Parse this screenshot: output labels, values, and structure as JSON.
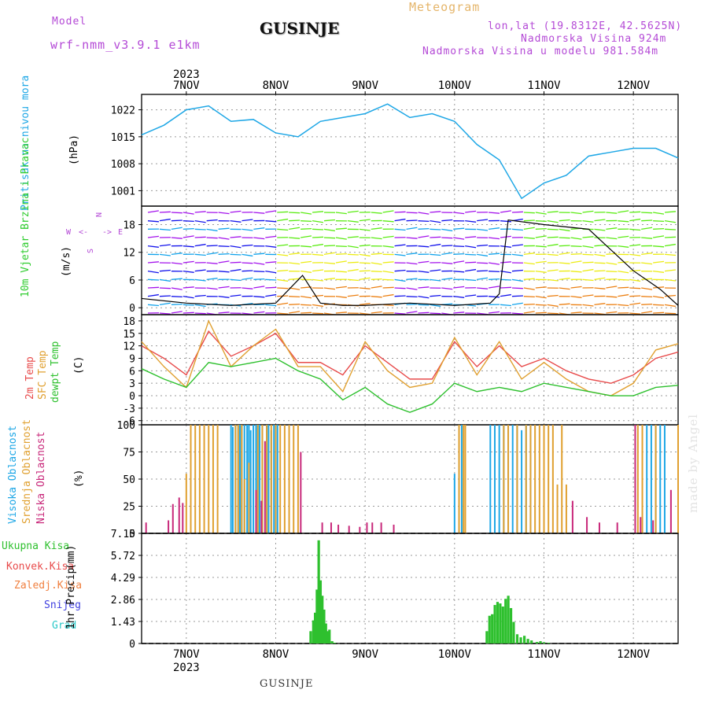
{
  "header": {
    "model_label": "Model",
    "model_name": "wrf-nmm_v3.9.1 e1km",
    "station": "GUSINJE",
    "meteogram_label": "Meteogram",
    "lonlat": "lon,lat (19.8312E, 42.5625N)",
    "altitude": "Nadmorska Visina 924m",
    "model_altitude": "Nadmorska Visina u modelu 981.584m"
  },
  "footer": {
    "station": "GUSINJE",
    "watermark": "made by Angel"
  },
  "colors": {
    "pressure": "#1ea7e6",
    "wind_labels": "#2ecc2e",
    "temp2m": "#e84b4b",
    "sfc": "#e0a030",
    "dewpt": "#2ec02e",
    "high_cloud": "#1ea7e6",
    "mid_cloud": "#e0a030",
    "low_cloud": "#c8287a",
    "precip": "#2ec02e"
  },
  "chart_data": [
    {
      "type": "line",
      "panel": "pressure",
      "ylabel": "Pritisak na nivou mora",
      "unit": "(hPa)",
      "year": "2023",
      "categories": [
        "7NOV",
        "8NOV",
        "9NOV",
        "10NOV",
        "11NOV",
        "12NOV"
      ],
      "x_day_ticks": [
        0.5,
        1.5,
        2.5,
        3.5,
        4.5,
        5.5
      ],
      "xlim": [
        0,
        6
      ],
      "ylim": [
        997,
        1026
      ],
      "yticks": [
        1001,
        1008,
        1015,
        1022
      ],
      "series": [
        {
          "x": [
            0.0,
            0.25,
            0.5,
            0.75,
            1.0,
            1.25,
            1.5,
            1.75,
            2.0,
            2.25,
            2.5,
            2.75,
            3.0,
            3.25,
            3.5,
            3.75,
            4.0,
            4.25,
            4.5,
            4.75,
            5.0,
            5.25,
            5.5,
            5.75,
            6.0
          ],
          "values": [
            1015.5,
            1018,
            1022,
            1023,
            1019,
            1019.5,
            1016,
            1015,
            1019,
            1020,
            1021,
            1023.5,
            1020,
            1021,
            1019,
            1013,
            1009,
            999,
            1003,
            1005,
            1010,
            1011,
            1012,
            1012,
            1009.5
          ]
        }
      ]
    },
    {
      "type": "line",
      "panel": "wind",
      "ylabel": "10m Vjetar Brzina i Pravac",
      "unit": "(m/s)",
      "compass": [
        "N",
        "<-",
        "W",
        "->",
        "E",
        "S"
      ],
      "ylim": [
        -1.5,
        22
      ],
      "yticks": [
        0,
        6,
        12,
        18
      ],
      "series": [
        {
          "name": "speed",
          "x": [
            0.0,
            0.5,
            1.0,
            1.5,
            1.8,
            2.0,
            2.25,
            2.5,
            3.0,
            3.5,
            3.9,
            4.0,
            4.1,
            4.5,
            5.0,
            5.5,
            5.8,
            6.0
          ],
          "values": [
            2,
            1,
            0.5,
            1,
            7,
            1,
            0.5,
            0.5,
            1,
            0.5,
            1,
            3,
            19,
            18,
            17,
            8,
            4,
            0.5
          ]
        }
      ]
    },
    {
      "type": "line",
      "panel": "temperature",
      "ylabel": [
        "2m Temp",
        "SFC Temp",
        "dewpt Temp"
      ],
      "unit": "(C)",
      "ylim": [
        -7,
        19.5
      ],
      "yticks": [
        -6,
        -3,
        0,
        3,
        6,
        9,
        12,
        15,
        18
      ],
      "x": [
        0.0,
        0.25,
        0.5,
        0.75,
        1.0,
        1.25,
        1.5,
        1.75,
        2.0,
        2.25,
        2.5,
        2.75,
        3.0,
        3.25,
        3.5,
        3.75,
        4.0,
        4.25,
        4.5,
        4.75,
        5.0,
        5.25,
        5.5,
        5.75,
        6.0
      ],
      "series": [
        {
          "name": "2m Temp",
          "values": [
            12,
            9,
            5,
            15.5,
            9.5,
            12,
            15,
            8,
            8,
            5,
            12,
            8,
            4,
            4,
            13,
            7,
            12,
            7,
            9,
            6,
            4,
            3,
            5,
            9,
            10.5
          ]
        },
        {
          "name": "SFC Temp",
          "values": [
            13,
            7,
            2,
            18,
            7,
            12,
            16,
            7,
            7,
            1,
            13,
            6,
            2,
            3,
            14,
            5,
            13,
            4,
            8,
            4,
            1,
            0,
            3,
            11,
            12.5
          ]
        },
        {
          "name": "dewpt Temp",
          "values": [
            6.5,
            4,
            2,
            8,
            7,
            8,
            9,
            6,
            4,
            -1,
            2,
            -2,
            -4,
            -2,
            3,
            1,
            2,
            1,
            3,
            2,
            1,
            0,
            0,
            2,
            2.5
          ]
        }
      ]
    },
    {
      "type": "bar",
      "panel": "cloud",
      "ylabel": [
        "Visoka Oblacnost",
        "Srednja Oblacnost",
        "Niska Oblacnost"
      ],
      "unit": "(%)",
      "ylim": [
        0,
        100
      ],
      "yticks": [
        0,
        25,
        50,
        75,
        100
      ],
      "series": [
        {
          "name": "Visoka Oblacnost",
          "x": [
            1.0,
            1.02,
            1.05,
            1.08,
            1.1,
            1.12,
            1.15,
            1.18,
            1.2,
            1.22,
            1.25,
            1.28,
            1.3,
            1.32,
            1.35,
            1.4,
            1.42,
            1.45,
            1.48,
            1.5,
            1.52,
            3.5,
            3.55,
            3.58,
            3.9,
            3.95,
            4.0,
            4.05,
            4.1,
            4.15,
            4.2,
            4.25,
            4.3,
            4.35,
            5.65,
            5.7,
            5.75,
            5.8,
            5.85
          ],
          "values": [
            100,
            98,
            100,
            100,
            100,
            100,
            100,
            100,
            100,
            95,
            100,
            100,
            100,
            100,
            100,
            100,
            100,
            95,
            100,
            100,
            100,
            55,
            100,
            100,
            100,
            100,
            100,
            100,
            100,
            100,
            100,
            95,
            100,
            100,
            100,
            100,
            100,
            100,
            100
          ]
        },
        {
          "name": "Srednja Oblacnost",
          "x": [
            0.5,
            0.55,
            0.6,
            0.65,
            0.7,
            0.75,
            0.8,
            0.85,
            1.05,
            1.08,
            1.12,
            1.15,
            1.2,
            1.3,
            1.35,
            1.4,
            1.45,
            1.5,
            1.55,
            1.6,
            1.65,
            1.7,
            1.75,
            3.55,
            3.6,
            3.62,
            4.05,
            4.1,
            4.2,
            4.3,
            4.35,
            4.4,
            4.45,
            4.5,
            4.55,
            4.6,
            4.65,
            4.7,
            4.75,
            5.55,
            5.6,
            5.75,
            6.0
          ],
          "values": [
            55,
            100,
            100,
            100,
            100,
            100,
            100,
            100,
            100,
            100,
            100,
            50,
            65,
            100,
            100,
            100,
            100,
            100,
            100,
            100,
            100,
            100,
            100,
            100,
            100,
            100,
            100,
            100,
            100,
            100,
            100,
            100,
            100,
            100,
            100,
            100,
            45,
            100,
            45,
            100,
            100,
            100,
            100
          ]
        },
        {
          "name": "Niska Oblacnost",
          "x": [
            0.05,
            0.3,
            0.35,
            0.42,
            0.46,
            1.28,
            1.34,
            1.38,
            1.78,
            2.02,
            2.12,
            2.2,
            2.32,
            2.44,
            2.52,
            2.58,
            2.68,
            2.82,
            4.82,
            4.98,
            5.12,
            5.32,
            5.52,
            5.58,
            5.72,
            5.92
          ],
          "values": [
            10,
            12,
            27,
            33,
            28,
            40,
            30,
            85,
            75,
            10,
            10,
            8,
            7,
            6,
            10,
            10,
            10,
            8,
            30,
            15,
            10,
            10,
            100,
            15,
            12,
            40
          ]
        }
      ]
    },
    {
      "type": "bar",
      "panel": "precipitation",
      "ylabel": "1hr Precip",
      "unit": "(mm)",
      "legend": [
        "Ukupna Kisa",
        "Konvek.Kisa",
        "Zaledj.Kisa",
        "Snijeg",
        "Grad"
      ],
      "ylim": [
        0,
        7.15
      ],
      "yticks": [
        0,
        1.43,
        2.86,
        4.29,
        5.72,
        7.15
      ],
      "series": [
        {
          "name": "Ukupna Kisa",
          "x": [
            1.89,
            1.92,
            1.94,
            1.96,
            1.98,
            2.0,
            2.02,
            2.04,
            2.06,
            2.08,
            2.1,
            2.13,
            2.16,
            3.86,
            3.89,
            3.92,
            3.95,
            3.98,
            4.01,
            4.04,
            4.07,
            4.1,
            4.13,
            4.16,
            4.2,
            4.24,
            4.28,
            4.32,
            4.36,
            4.42,
            4.46,
            4.5,
            4.55
          ],
          "values": [
            0.8,
            1.5,
            2.0,
            3.5,
            6.7,
            4.1,
            3.1,
            2.2,
            1.3,
            0.8,
            0.9,
            0.15,
            0.05,
            0.8,
            1.8,
            1.9,
            2.5,
            2.7,
            2.6,
            2.4,
            2.9,
            3.1,
            2.3,
            1.4,
            0.6,
            0.4,
            0.5,
            0.3,
            0.2,
            0.1,
            0.15,
            0.08,
            0.05
          ]
        }
      ]
    }
  ]
}
